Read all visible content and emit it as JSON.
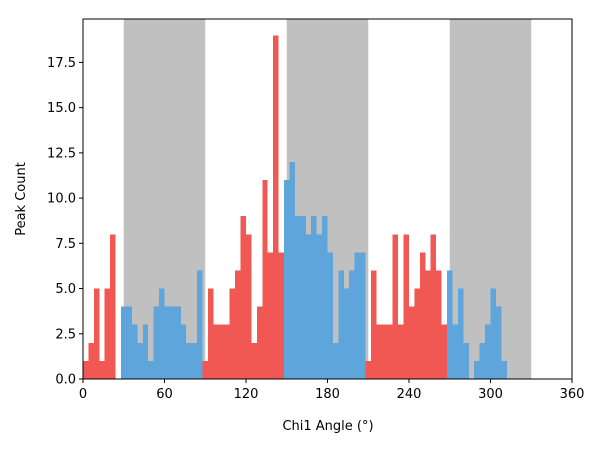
{
  "chart_data": {
    "type": "bar",
    "title": "",
    "xlabel": "Chi1 Angle (°)",
    "ylabel": "Peak Count",
    "xlim": [
      0,
      360
    ],
    "ylim": [
      0,
      19.9
    ],
    "xticks": [
      0,
      60,
      120,
      180,
      240,
      300,
      360
    ],
    "xtick_labels": [
      "0",
      "60",
      "120",
      "180",
      "240",
      "300",
      "360"
    ],
    "yticks": [
      0,
      2.5,
      5,
      7.5,
      10,
      12.5,
      15,
      17.5
    ],
    "ytick_labels": [
      "0.0",
      "2.5",
      "5.0",
      "7.5",
      "10.0",
      "12.5",
      "15.0",
      "17.5"
    ],
    "bin_width": 4,
    "bin_start": 0,
    "grid": false,
    "shaded_ranges": [
      [
        30,
        90
      ],
      [
        150,
        210
      ],
      [
        270,
        330
      ]
    ],
    "colors": {
      "shade": "#c0c0c0",
      "in_range": "#5da5da",
      "out_range": "#f15854"
    },
    "counts": [
      1,
      2,
      5,
      1,
      5,
      8,
      0,
      4,
      4,
      3,
      2,
      3,
      1,
      4,
      5,
      4,
      4,
      4,
      3,
      2,
      2,
      6,
      1,
      5,
      3,
      3,
      3,
      5,
      6,
      9,
      8,
      2,
      4,
      11,
      7,
      19,
      7,
      11,
      12,
      9,
      9,
      8,
      9,
      8,
      9,
      7,
      2,
      6,
      5,
      6,
      7,
      7,
      1,
      6,
      3,
      3,
      3,
      8,
      3,
      8,
      4,
      5,
      7,
      6,
      8,
      6,
      3,
      6,
      3,
      5,
      2,
      0,
      1,
      2,
      3,
      5,
      4,
      1
    ]
  }
}
